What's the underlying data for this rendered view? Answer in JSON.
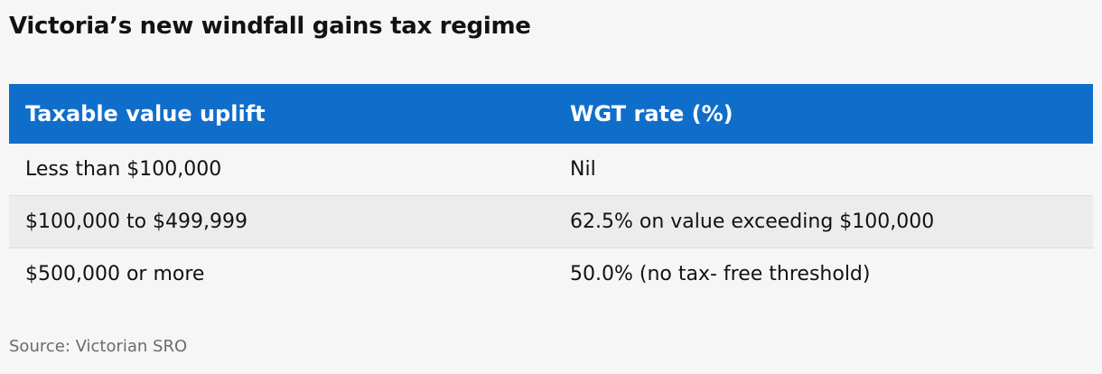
{
  "title": "Victoria’s new windfall gains tax regime",
  "table": {
    "header": [
      "Taxable value uplift",
      "WGT rate (%)"
    ],
    "rows": [
      [
        "Less than $100,000",
        "Nil"
      ],
      [
        "$100,000 to $499,999",
        "62.5% on value exceeding $100,000"
      ],
      [
        "$500,000 or more",
        "50.0% (no tax- free threshold)"
      ]
    ]
  },
  "source": "Source: Victorian SRO"
}
